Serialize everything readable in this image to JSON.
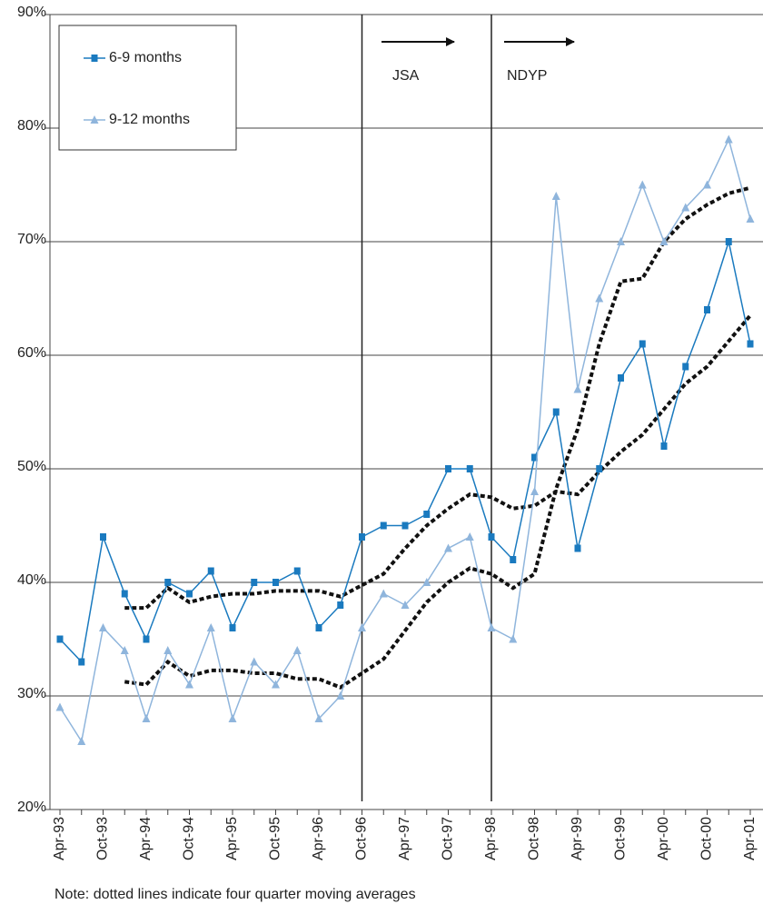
{
  "chart_data": {
    "type": "line",
    "categories": [
      "Apr-93",
      null,
      "Oct-93",
      null,
      "Apr-94",
      null,
      "Oct-94",
      null,
      "Apr-95",
      null,
      "Oct-95",
      null,
      "Apr-96",
      null,
      "Oct-96",
      null,
      "Apr-97",
      null,
      "Oct-97",
      null,
      "Apr-98",
      null,
      "Oct-98",
      null,
      "Apr-99",
      null,
      "Oct-99",
      null,
      "Apr-00",
      null,
      "Oct-00",
      null,
      "Apr-01"
    ],
    "series": [
      {
        "name": "6-9 months",
        "color": "#1a7abf",
        "marker": "square",
        "values": [
          35,
          33,
          44,
          39,
          35,
          40,
          39,
          41,
          36,
          40,
          40,
          41,
          36,
          38,
          44,
          45,
          45,
          46,
          50,
          50,
          44,
          42,
          51,
          55,
          43,
          50,
          58,
          61,
          52,
          59,
          64,
          70,
          61
        ]
      },
      {
        "name": "9-12 months",
        "color": "#8fb5dc",
        "marker": "triangle",
        "values": [
          29,
          26,
          36,
          34,
          28,
          34,
          31,
          36,
          28,
          33,
          31,
          34,
          28,
          30,
          36,
          39,
          38,
          40,
          43,
          44,
          36,
          35,
          48,
          74,
          57,
          65,
          70,
          75,
          70,
          73,
          75,
          79,
          72
        ]
      }
    ],
    "moving_averages": [
      {
        "color": "#111111",
        "values": [
          null,
          null,
          null,
          37.75,
          37.75,
          39.5,
          38.25,
          38.75,
          39,
          39,
          39.25,
          39.25,
          39.25,
          38.75,
          39.75,
          40.75,
          43,
          45,
          46.5,
          47.75,
          47.5,
          46.5,
          46.75,
          48,
          47.75,
          49.75,
          51.5,
          53,
          55.25,
          57.5,
          59,
          61.25,
          63.5
        ]
      },
      {
        "color": "#111111",
        "values": [
          null,
          null,
          null,
          31.25,
          31,
          33,
          31.75,
          32.25,
          32.25,
          32,
          32,
          31.5,
          31.5,
          30.75,
          32,
          33.25,
          35.75,
          38.25,
          40,
          41.25,
          40.75,
          39.5,
          40.75,
          48.25,
          53.5,
          61,
          66.5,
          66.75,
          70,
          72,
          73.25,
          74.25,
          74.75
        ]
      }
    ],
    "ylim": [
      20,
      90
    ],
    "yticks": [
      {
        "value": 20,
        "label": "20%"
      },
      {
        "value": 30,
        "label": "30%"
      },
      {
        "value": 40,
        "label": "40%"
      },
      {
        "value": 50,
        "label": "50%"
      },
      {
        "value": 60,
        "label": "60%"
      },
      {
        "value": 70,
        "label": "70%"
      },
      {
        "value": 80,
        "label": "80%"
      },
      {
        "value": 90,
        "label": "90%"
      }
    ],
    "grid": true,
    "annotations": [
      "JSA",
      "NDYP"
    ],
    "note": "Note: dotted lines indicate four quarter moving averages"
  }
}
